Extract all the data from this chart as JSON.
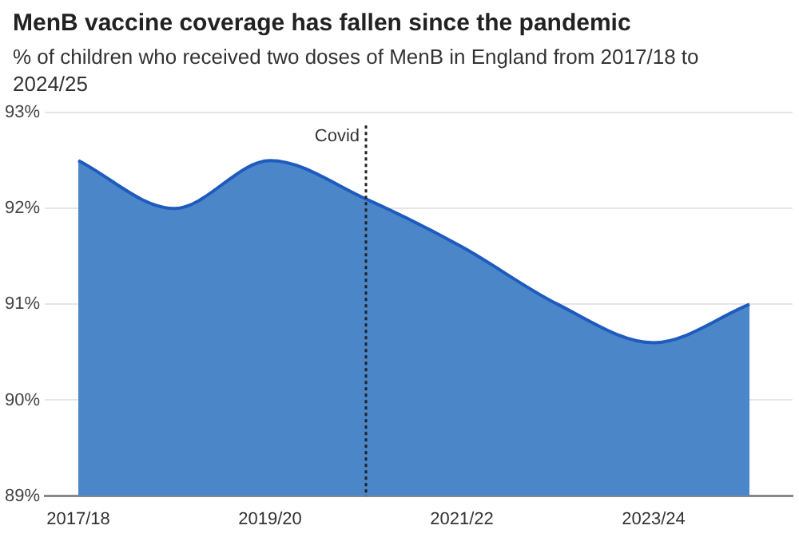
{
  "chart_data": {
    "type": "area",
    "title": "MenB vaccine coverage has fallen since the pandemic",
    "subtitle": "% of children who received two doses of MenB in England from 2017/18 to 2024/25",
    "categories": [
      "2017/18",
      null,
      "2019/20",
      null,
      "2021/22",
      null,
      "2023/24",
      null
    ],
    "series": [
      {
        "color": "#4a86c8",
        "values": [
          92.5,
          92.0,
          92.5,
          92.1,
          91.6,
          91.0,
          90.6,
          91.0
        ]
      }
    ],
    "ylim": [
      89,
      93
    ],
    "yticks": [
      {
        "value": 89,
        "label": "89%"
      },
      {
        "value": 90,
        "label": "90%"
      },
      {
        "value": 91,
        "label": "91%"
      },
      {
        "value": 92,
        "label": "92%"
      },
      {
        "value": 93,
        "label": "93%"
      }
    ],
    "annotations": [
      "Covid"
    ],
    "grid": "y",
    "legend": false,
    "marker": "none",
    "line_style": "solid"
  }
}
